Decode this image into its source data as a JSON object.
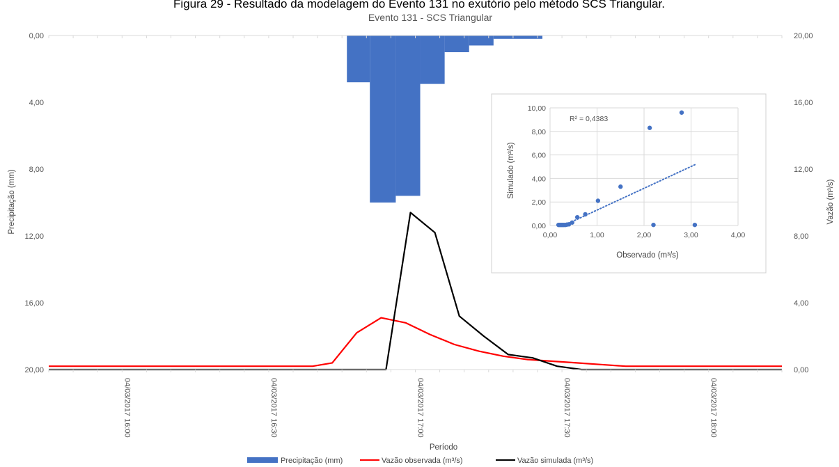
{
  "figure_caption": "Figura 29 - Resultado da modelagem do Evento 131 no exutório pelo método SCS Triangular.",
  "chart_data": [
    {
      "type": "bar+line",
      "title": "Evento 131 - SCS Triangular",
      "xlabel": "Período",
      "ylabel_left": "Precipitação (mm)",
      "ylabel_right": "Vazão (m³/s)",
      "ylim_left": [
        0,
        20
      ],
      "y_left_inverted": true,
      "ylim_right": [
        0,
        20
      ],
      "y_left_ticks": [
        "0,00",
        "4,00",
        "8,00",
        "12,00",
        "16,00",
        "20,00"
      ],
      "y_right_ticks": [
        "0,00",
        "4,00",
        "8,00",
        "12,00",
        "16,00",
        "20,00"
      ],
      "x_tick_labels": [
        "04/03/2017 16:00",
        "04/03/2017 16:30",
        "04/03/2017 17:00",
        "04/03/2017 17:30",
        "04/03/2017 18:00"
      ],
      "x_range_minutes": [
        0,
        150
      ],
      "x_tick_minutes": [
        15,
        45,
        75,
        105,
        135
      ],
      "legend_position": "bottom",
      "grid": false,
      "series": [
        {
          "name": "Precipitação (mm)",
          "kind": "bar",
          "axis": "left",
          "color": "#4472C4",
          "bars": [
            {
              "start": 61,
              "end": 65.7,
              "value": 2.8
            },
            {
              "start": 65.7,
              "end": 71,
              "value": 10.0
            },
            {
              "start": 71,
              "end": 76,
              "value": 9.6
            },
            {
              "start": 76,
              "end": 81,
              "value": 2.9
            },
            {
              "start": 81,
              "end": 86,
              "value": 1.0
            },
            {
              "start": 86,
              "end": 91,
              "value": 0.6
            },
            {
              "start": 91,
              "end": 101,
              "value": 0.2
            }
          ]
        },
        {
          "name": "Vazão observada (m³/s)",
          "kind": "line",
          "axis": "right",
          "color": "#FF0000",
          "x": [
            0,
            54,
            58,
            63,
            68,
            73,
            78,
            83,
            88,
            93,
            98,
            103,
            108,
            113,
            118,
            123,
            150
          ],
          "y": [
            0.2,
            0.2,
            0.4,
            2.2,
            3.1,
            2.8,
            2.1,
            1.5,
            1.1,
            0.8,
            0.6,
            0.5,
            0.4,
            0.3,
            0.2,
            0.2,
            0.2
          ]
        },
        {
          "name": "Vazão simulada (m³/s)",
          "kind": "line",
          "axis": "right",
          "color": "#000000",
          "x": [
            0,
            69,
            74,
            79,
            84,
            89,
            94,
            99,
            104,
            109,
            150
          ],
          "y": [
            0,
            0,
            9.4,
            8.2,
            3.2,
            2.0,
            0.9,
            0.7,
            0.2,
            0,
            0
          ]
        }
      ]
    },
    {
      "type": "scatter",
      "xlabel": "Observado (m³/s)",
      "ylabel": "Simulado (m³/s)",
      "xlim": [
        0,
        4
      ],
      "ylim": [
        0,
        10
      ],
      "x_ticks": [
        "0,00",
        "1,00",
        "2,00",
        "3,00",
        "4,00"
      ],
      "y_ticks": [
        "0,00",
        "2,00",
        "4,00",
        "6,00",
        "8,00",
        "10,00"
      ],
      "grid": true,
      "annotation": "R² = 0,4383",
      "color": "#4472C4",
      "points": [
        {
          "x": 0.18,
          "y": 0.05
        },
        {
          "x": 0.2,
          "y": 0.05
        },
        {
          "x": 0.22,
          "y": 0.05
        },
        {
          "x": 0.24,
          "y": 0.05
        },
        {
          "x": 0.26,
          "y": 0.05
        },
        {
          "x": 0.28,
          "y": 0.05
        },
        {
          "x": 0.3,
          "y": 0.05
        },
        {
          "x": 0.33,
          "y": 0.05
        },
        {
          "x": 0.36,
          "y": 0.08
        },
        {
          "x": 0.4,
          "y": 0.1
        },
        {
          "x": 0.47,
          "y": 0.25
        },
        {
          "x": 0.58,
          "y": 0.7
        },
        {
          "x": 0.75,
          "y": 0.95
        },
        {
          "x": 1.02,
          "y": 2.1
        },
        {
          "x": 1.5,
          "y": 3.3
        },
        {
          "x": 2.12,
          "y": 8.3
        },
        {
          "x": 2.2,
          "y": 0.05
        },
        {
          "x": 2.8,
          "y": 9.6
        },
        {
          "x": 3.08,
          "y": 0.05
        }
      ],
      "trendline": {
        "style": "dotted",
        "x": [
          0.4,
          3.1
        ],
        "y": [
          0.2,
          5.2
        ]
      }
    }
  ]
}
